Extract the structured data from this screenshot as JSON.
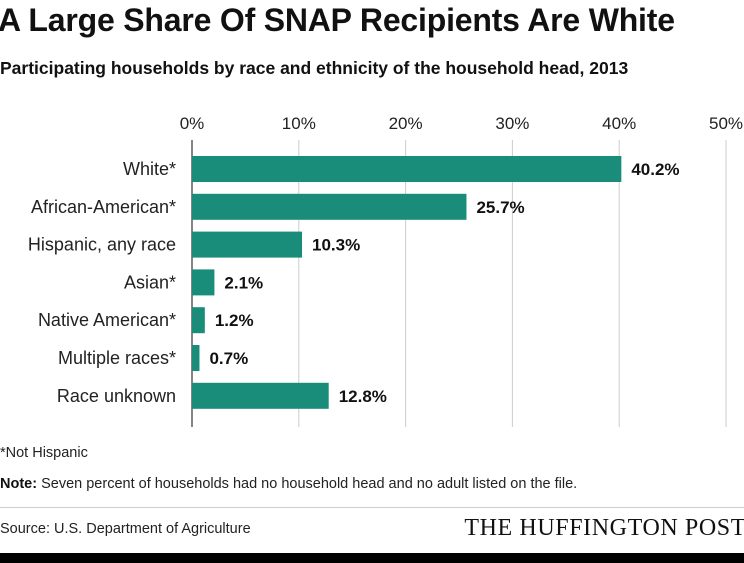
{
  "title": "A Large Share Of SNAP Recipients Are White",
  "subtitle": "Participating households by race and ethnicity of the household head, 2013",
  "bar_color": "#1a8c7a",
  "grid_color": "#cccccc",
  "chart_data": {
    "type": "bar",
    "orientation": "horizontal",
    "categories": [
      "White*",
      "African-American*",
      "Hispanic, any race",
      "Asian*",
      "Native American*",
      "Multiple races*",
      "Race unknown"
    ],
    "values": [
      40.2,
      25.7,
      10.3,
      2.1,
      1.2,
      0.7,
      12.8
    ],
    "value_labels": [
      "40.2%",
      "25.7%",
      "10.3%",
      "2.1%",
      "1.2%",
      "0.7%",
      "12.8%"
    ],
    "xlim": [
      0,
      50
    ],
    "xticks": [
      0,
      10,
      20,
      30,
      40,
      50
    ],
    "xtick_labels": [
      "0%",
      "10%",
      "20%",
      "30%",
      "40%",
      "50%"
    ],
    "grid": true,
    "xaxis_position": "top"
  },
  "footnote": "*Not Hispanic",
  "note": {
    "label": "Note:",
    "text": " Seven percent of households had no household head and no adult listed on the file."
  },
  "source": "Source: U.S. Department of Agriculture",
  "logo_text": "THE HUFFINGTON POST"
}
